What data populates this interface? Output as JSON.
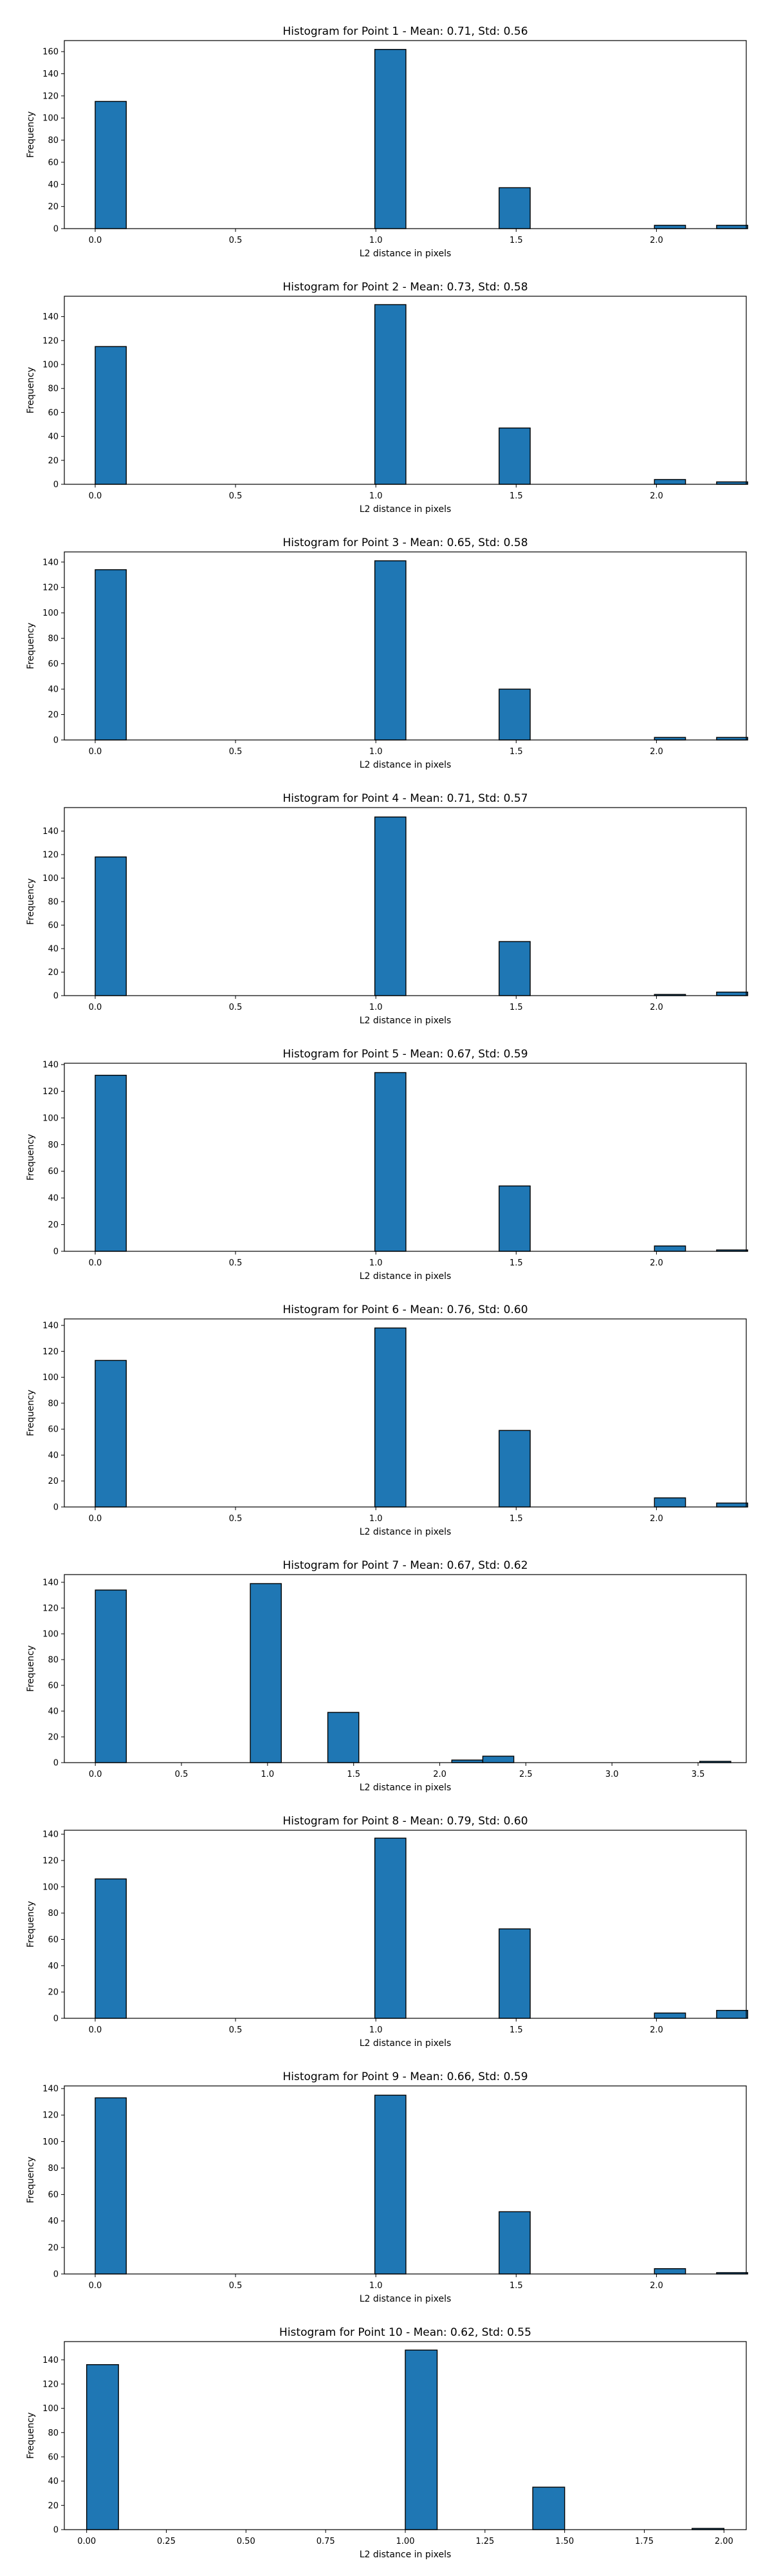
{
  "chart_data": [
    {
      "type": "bar",
      "title": "Histogram for Point 1 - Mean: 0.71, Std: 0.56",
      "xlabel": "L2 distance in pixels",
      "ylabel": "Frequency",
      "xlim": [
        -0.11,
        2.32
      ],
      "ylim": [
        0,
        170
      ],
      "xticks": [
        0.0,
        0.5,
        1.0,
        1.5,
        2.0
      ],
      "xtick_labels": [
        "0.0",
        "0.5",
        "1.0",
        "1.5",
        "2.0"
      ],
      "yticks": [
        0,
        20,
        40,
        60,
        80,
        100,
        120,
        140,
        160
      ],
      "bin_width": 0.1107,
      "bins": [
        {
          "x": 0.0,
          "value": 115
        },
        {
          "x": 0.9964,
          "value": 162
        },
        {
          "x": 1.4393,
          "value": 37
        },
        {
          "x": 1.9928,
          "value": 3
        },
        {
          "x": 2.2143,
          "value": 3
        }
      ],
      "grid": false,
      "color": "#1f77b4"
    },
    {
      "type": "bar",
      "title": "Histogram for Point 2 - Mean: 0.73, Std: 0.58",
      "xlabel": "L2 distance in pixels",
      "ylabel": "Frequency",
      "xlim": [
        -0.11,
        2.32
      ],
      "ylim": [
        0,
        157
      ],
      "xticks": [
        0.0,
        0.5,
        1.0,
        1.5,
        2.0
      ],
      "xtick_labels": [
        "0.0",
        "0.5",
        "1.0",
        "1.5",
        "2.0"
      ],
      "yticks": [
        0,
        20,
        40,
        60,
        80,
        100,
        120,
        140
      ],
      "bin_width": 0.1107,
      "bins": [
        {
          "x": 0.0,
          "value": 115
        },
        {
          "x": 0.9964,
          "value": 150
        },
        {
          "x": 1.4393,
          "value": 47
        },
        {
          "x": 1.9928,
          "value": 4
        },
        {
          "x": 2.2143,
          "value": 2
        }
      ],
      "grid": false,
      "color": "#1f77b4"
    },
    {
      "type": "bar",
      "title": "Histogram for Point 3 - Mean: 0.65, Std: 0.58",
      "xlabel": "L2 distance in pixels",
      "ylabel": "Frequency",
      "xlim": [
        -0.11,
        2.32
      ],
      "ylim": [
        0,
        148
      ],
      "xticks": [
        0.0,
        0.5,
        1.0,
        1.5,
        2.0
      ],
      "xtick_labels": [
        "0.0",
        "0.5",
        "1.0",
        "1.5",
        "2.0"
      ],
      "yticks": [
        0,
        20,
        40,
        60,
        80,
        100,
        120,
        140
      ],
      "bin_width": 0.1107,
      "bins": [
        {
          "x": 0.0,
          "value": 134
        },
        {
          "x": 0.9964,
          "value": 141
        },
        {
          "x": 1.4393,
          "value": 40
        },
        {
          "x": 1.9928,
          "value": 2
        },
        {
          "x": 2.2143,
          "value": 2
        }
      ],
      "grid": false,
      "color": "#1f77b4"
    },
    {
      "type": "bar",
      "title": "Histogram for Point 4 - Mean: 0.71, Std: 0.57",
      "xlabel": "L2 distance in pixels",
      "ylabel": "Frequency",
      "xlim": [
        -0.11,
        2.32
      ],
      "ylim": [
        0,
        160
      ],
      "xticks": [
        0.0,
        0.5,
        1.0,
        1.5,
        2.0
      ],
      "xtick_labels": [
        "0.0",
        "0.5",
        "1.0",
        "1.5",
        "2.0"
      ],
      "yticks": [
        0,
        20,
        40,
        60,
        80,
        100,
        120,
        140
      ],
      "bin_width": 0.1107,
      "bins": [
        {
          "x": 0.0,
          "value": 118
        },
        {
          "x": 0.9964,
          "value": 152
        },
        {
          "x": 1.4393,
          "value": 46
        },
        {
          "x": 1.9928,
          "value": 1
        },
        {
          "x": 2.2143,
          "value": 3
        }
      ],
      "grid": false,
      "color": "#1f77b4"
    },
    {
      "type": "bar",
      "title": "Histogram for Point 5 - Mean: 0.67, Std: 0.59",
      "xlabel": "L2 distance in pixels",
      "ylabel": "Frequency",
      "xlim": [
        -0.11,
        2.32
      ],
      "ylim": [
        0,
        141
      ],
      "xticks": [
        0.0,
        0.5,
        1.0,
        1.5,
        2.0
      ],
      "xtick_labels": [
        "0.0",
        "0.5",
        "1.0",
        "1.5",
        "2.0"
      ],
      "yticks": [
        0,
        20,
        40,
        60,
        80,
        100,
        120,
        140
      ],
      "bin_width": 0.1107,
      "bins": [
        {
          "x": 0.0,
          "value": 132
        },
        {
          "x": 0.9964,
          "value": 134
        },
        {
          "x": 1.4393,
          "value": 49
        },
        {
          "x": 1.9928,
          "value": 4
        },
        {
          "x": 2.2143,
          "value": 1
        }
      ],
      "grid": false,
      "color": "#1f77b4"
    },
    {
      "type": "bar",
      "title": "Histogram for Point 6 - Mean: 0.76, Std: 0.60",
      "xlabel": "L2 distance in pixels",
      "ylabel": "Frequency",
      "xlim": [
        -0.11,
        2.32
      ],
      "ylim": [
        0,
        145
      ],
      "xticks": [
        0.0,
        0.5,
        1.0,
        1.5,
        2.0
      ],
      "xtick_labels": [
        "0.0",
        "0.5",
        "1.0",
        "1.5",
        "2.0"
      ],
      "yticks": [
        0,
        20,
        40,
        60,
        80,
        100,
        120,
        140
      ],
      "bin_width": 0.1107,
      "bins": [
        {
          "x": 0.0,
          "value": 113
        },
        {
          "x": 0.9964,
          "value": 138
        },
        {
          "x": 1.4393,
          "value": 59
        },
        {
          "x": 1.9928,
          "value": 7
        },
        {
          "x": 2.2143,
          "value": 3
        }
      ],
      "grid": false,
      "color": "#1f77b4"
    },
    {
      "type": "bar",
      "title": "Histogram for Point 7 - Mean: 0.67, Std: 0.62",
      "xlabel": "L2 distance in pixels",
      "ylabel": "Frequency",
      "xlim": [
        -0.18,
        3.78
      ],
      "ylim": [
        0,
        146
      ],
      "xticks": [
        0.0,
        0.5,
        1.0,
        1.5,
        2.0,
        2.5,
        3.0,
        3.5
      ],
      "xtick_labels": [
        "0.0",
        "0.5",
        "1.0",
        "1.5",
        "2.0",
        "2.5",
        "3.0",
        "3.5"
      ],
      "yticks": [
        0,
        20,
        40,
        60,
        80,
        100,
        120,
        140
      ],
      "bin_width": 0.18,
      "bins": [
        {
          "x": 0.0,
          "value": 134
        },
        {
          "x": 0.9,
          "value": 139
        },
        {
          "x": 1.35,
          "value": 39
        },
        {
          "x": 2.07,
          "value": 2
        },
        {
          "x": 2.25,
          "value": 5
        },
        {
          "x": 3.51,
          "value": 1
        }
      ],
      "grid": false,
      "color": "#1f77b4"
    },
    {
      "type": "bar",
      "title": "Histogram for Point 8 - Mean: 0.79, Std: 0.60",
      "xlabel": "L2 distance in pixels",
      "ylabel": "Frequency",
      "xlim": [
        -0.11,
        2.32
      ],
      "ylim": [
        0,
        143
      ],
      "xticks": [
        0.0,
        0.5,
        1.0,
        1.5,
        2.0
      ],
      "xtick_labels": [
        "0.0",
        "0.5",
        "1.0",
        "1.5",
        "2.0"
      ],
      "yticks": [
        0,
        20,
        40,
        60,
        80,
        100,
        120,
        140
      ],
      "bin_width": 0.1107,
      "bins": [
        {
          "x": 0.0,
          "value": 106
        },
        {
          "x": 0.9964,
          "value": 137
        },
        {
          "x": 1.4393,
          "value": 68
        },
        {
          "x": 1.9928,
          "value": 4
        },
        {
          "x": 2.2143,
          "value": 6
        }
      ],
      "grid": false,
      "color": "#1f77b4"
    },
    {
      "type": "bar",
      "title": "Histogram for Point 9 - Mean: 0.66, Std: 0.59",
      "xlabel": "L2 distance in pixels",
      "ylabel": "Frequency",
      "xlim": [
        -0.11,
        2.32
      ],
      "ylim": [
        0,
        142
      ],
      "xticks": [
        0.0,
        0.5,
        1.0,
        1.5,
        2.0
      ],
      "xtick_labels": [
        "0.0",
        "0.5",
        "1.0",
        "1.5",
        "2.0"
      ],
      "yticks": [
        0,
        20,
        40,
        60,
        80,
        100,
        120,
        140
      ],
      "bin_width": 0.1107,
      "bins": [
        {
          "x": 0.0,
          "value": 133
        },
        {
          "x": 0.9964,
          "value": 135
        },
        {
          "x": 1.4393,
          "value": 47
        },
        {
          "x": 1.9928,
          "value": 4
        },
        {
          "x": 2.2143,
          "value": 1
        }
      ],
      "grid": false,
      "color": "#1f77b4"
    },
    {
      "type": "bar",
      "title": "Histogram for Point 10 - Mean: 0.62, Std: 0.55",
      "xlabel": "L2 distance in pixels",
      "ylabel": "Frequency",
      "xlim": [
        -0.07,
        2.07
      ],
      "ylim": [
        0,
        155
      ],
      "xticks": [
        0.0,
        0.25,
        0.5,
        0.75,
        1.0,
        1.25,
        1.5,
        1.75,
        2.0
      ],
      "xtick_labels": [
        "0.00",
        "0.25",
        "0.50",
        "0.75",
        "1.00",
        "1.25",
        "1.50",
        "1.75",
        "2.00"
      ],
      "yticks": [
        0,
        20,
        40,
        60,
        80,
        100,
        120,
        140
      ],
      "bin_width": 0.1,
      "bins": [
        {
          "x": 0.0,
          "value": 136
        },
        {
          "x": 1.0,
          "value": 148
        },
        {
          "x": 1.4,
          "value": 35
        },
        {
          "x": 1.9,
          "value": 1
        }
      ],
      "grid": false,
      "color": "#1f77b4"
    }
  ]
}
